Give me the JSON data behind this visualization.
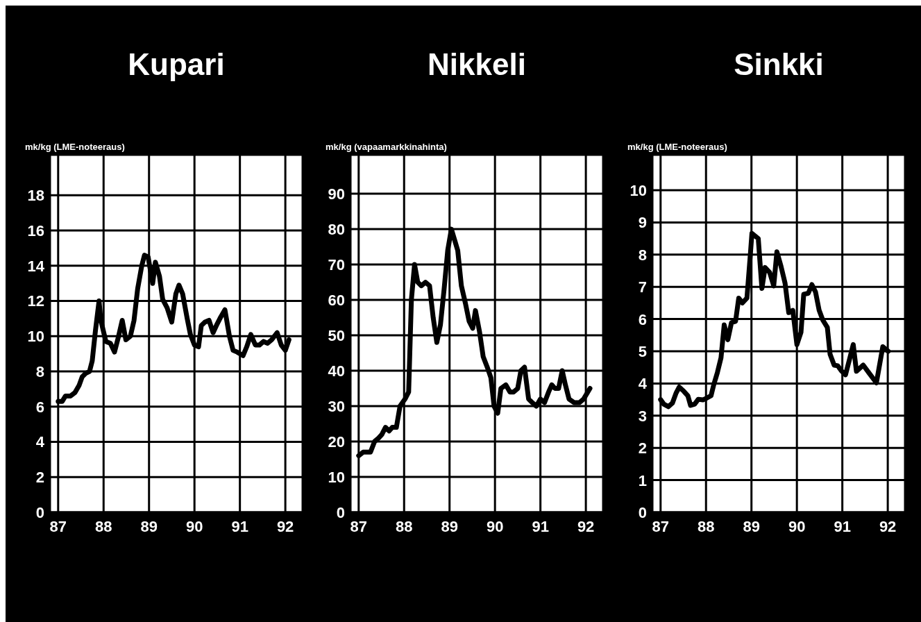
{
  "chart_data": [
    {
      "type": "line",
      "title": "Kupari",
      "ylabel": "mk/kg (LME-noteeraus)",
      "xlim": [
        86.82,
        92.38
      ],
      "xticks": [
        87,
        88,
        89,
        90,
        91,
        92
      ],
      "ylim": [
        0,
        20.3
      ],
      "yticks": [
        0,
        2,
        4,
        6,
        8,
        10,
        12,
        14,
        16,
        18
      ],
      "grid": true,
      "line_style": "solid",
      "series": [
        {
          "color": "#000000",
          "x": [
            87.0,
            87.09,
            87.16,
            87.27,
            87.37,
            87.46,
            87.53,
            87.61,
            87.69,
            87.75,
            87.82,
            87.9,
            87.94,
            88.05,
            88.15,
            88.24,
            88.33,
            88.41,
            88.49,
            88.59,
            88.67,
            88.75,
            88.84,
            88.9,
            88.98,
            89.08,
            89.14,
            89.23,
            89.3,
            89.4,
            89.5,
            89.59,
            89.66,
            89.74,
            89.84,
            89.91,
            90.0,
            90.09,
            90.15,
            90.23,
            90.32,
            90.41,
            90.5,
            90.58,
            90.67,
            90.77,
            90.85,
            90.94,
            91.07,
            91.15,
            91.24,
            91.34,
            91.43,
            91.52,
            91.61,
            91.7,
            91.82,
            91.91,
            92.0,
            92.08
          ],
          "values": [
            6.3,
            6.3,
            6.6,
            6.6,
            6.8,
            7.2,
            7.7,
            7.9,
            8.0,
            8.6,
            10.3,
            12.0,
            10.9,
            9.7,
            9.6,
            9.1,
            10.0,
            10.9,
            9.8,
            10.0,
            10.9,
            12.7,
            14.0,
            14.6,
            14.5,
            13.0,
            14.2,
            13.4,
            12.1,
            11.6,
            10.8,
            12.4,
            12.9,
            12.4,
            11.0,
            10.1,
            9.5,
            9.4,
            10.6,
            10.8,
            10.9,
            10.2,
            10.7,
            11.1,
            11.5,
            10.0,
            9.2,
            9.1,
            8.9,
            9.4,
            10.1,
            9.5,
            9.5,
            9.7,
            9.6,
            9.8,
            10.2,
            9.5,
            9.2,
            9.8
          ]
        }
      ]
    },
    {
      "type": "line",
      "title": "Nikkeli",
      "ylabel": "mk/kg (vapaamarkkinahinta)",
      "xlim": [
        86.82,
        92.38
      ],
      "xticks": [
        87,
        88,
        89,
        90,
        91,
        92
      ],
      "ylim": [
        0,
        101
      ],
      "yticks": [
        0,
        10,
        20,
        30,
        40,
        50,
        60,
        70,
        80,
        90
      ],
      "grid": true,
      "line_style": "solid",
      "series": [
        {
          "color": "#000000",
          "x": [
            87.0,
            87.1,
            87.2,
            87.26,
            87.35,
            87.44,
            87.51,
            87.59,
            87.67,
            87.74,
            87.83,
            87.91,
            88.02,
            88.1,
            88.16,
            88.23,
            88.3,
            88.38,
            88.47,
            88.56,
            88.64,
            88.72,
            88.8,
            88.88,
            88.96,
            89.04,
            89.11,
            89.18,
            89.26,
            89.35,
            89.43,
            89.51,
            89.57,
            89.66,
            89.74,
            89.83,
            89.91,
            89.98,
            90.06,
            90.13,
            90.24,
            90.33,
            90.41,
            90.5,
            90.57,
            90.65,
            90.74,
            90.82,
            90.91,
            91.0,
            91.09,
            91.18,
            91.25,
            91.32,
            91.4,
            91.48,
            91.55,
            91.63,
            91.74,
            91.86,
            91.95,
            92.09
          ],
          "values": [
            16,
            17,
            17,
            17,
            20,
            21,
            22,
            24,
            23,
            24,
            24,
            30,
            32,
            34,
            60,
            70,
            65,
            64,
            65,
            64,
            55,
            48,
            53,
            63,
            74,
            80,
            77,
            74,
            64,
            59,
            54,
            52,
            57,
            51,
            44,
            41,
            38,
            30,
            28,
            35,
            36,
            34,
            34,
            35,
            40,
            41,
            32,
            31,
            30,
            32,
            31,
            34,
            36,
            35,
            35,
            40,
            36,
            32,
            31,
            31,
            32,
            35
          ]
        }
      ]
    },
    {
      "type": "line",
      "title": "Sinkki",
      "ylabel": "mk/kg (LME-noteeraus)",
      "xlim": [
        86.82,
        92.38
      ],
      "xticks": [
        87,
        88,
        89,
        90,
        91,
        92
      ],
      "ylim": [
        0,
        11.1
      ],
      "yticks": [
        0,
        1,
        2,
        3,
        4,
        5,
        6,
        7,
        8,
        9,
        10
      ],
      "grid": true,
      "line_style": "solid",
      "series": [
        {
          "color": "#000000",
          "x": [
            87.0,
            87.07,
            87.17,
            87.26,
            87.34,
            87.41,
            87.51,
            87.6,
            87.66,
            87.75,
            87.83,
            87.93,
            88.02,
            88.11,
            88.17,
            88.25,
            88.33,
            88.4,
            88.48,
            88.56,
            88.65,
            88.72,
            88.8,
            88.9,
            88.98,
            89.01,
            89.15,
            89.23,
            89.3,
            89.4,
            89.49,
            89.56,
            89.65,
            89.74,
            89.82,
            89.91,
            90.0,
            90.09,
            90.15,
            90.25,
            90.33,
            90.41,
            90.49,
            90.57,
            90.67,
            90.73,
            90.82,
            90.9,
            90.98,
            91.07,
            91.16,
            91.24,
            91.31,
            91.46,
            91.58,
            91.75,
            91.89,
            92.01
          ],
          "values": [
            3.5,
            3.36,
            3.28,
            3.39,
            3.7,
            3.89,
            3.76,
            3.62,
            3.32,
            3.36,
            3.51,
            3.49,
            3.55,
            3.62,
            3.96,
            4.34,
            4.8,
            5.82,
            5.36,
            5.89,
            5.93,
            6.65,
            6.5,
            6.65,
            8.09,
            8.66,
            8.5,
            6.95,
            7.6,
            7.45,
            7.03,
            8.09,
            7.64,
            7.11,
            6.2,
            6.27,
            5.21,
            5.59,
            6.77,
            6.8,
            7.07,
            6.84,
            6.27,
            5.97,
            5.74,
            4.91,
            4.57,
            4.55,
            4.39,
            4.27,
            4.76,
            5.21,
            4.38,
            4.57,
            4.34,
            4.02,
            5.14,
            5.0
          ]
        }
      ]
    }
  ]
}
